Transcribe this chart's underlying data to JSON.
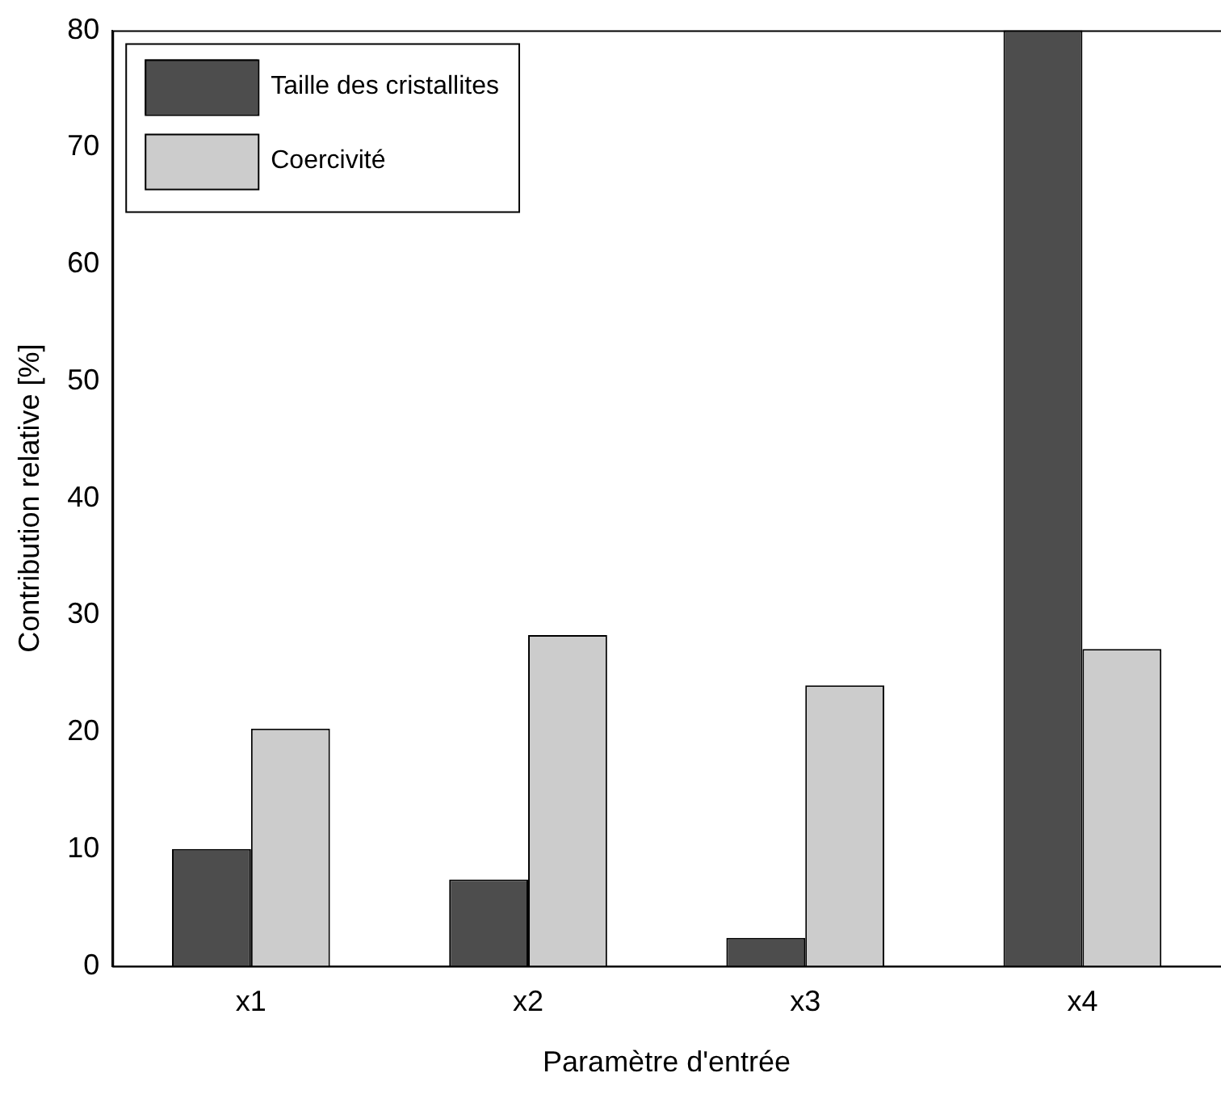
{
  "chart_data": {
    "type": "bar",
    "xlabel": "Paramètre d'entrée",
    "ylabel": "Contribution relative [%]",
    "categories": [
      "x1",
      "x2",
      "x3",
      "x4"
    ],
    "series": [
      {
        "name": "Taille des cristallites",
        "color": "#4d4d4d",
        "values": [
          10,
          7.4,
          2.4,
          80
        ]
      },
      {
        "name": "Coercivité",
        "color": "#cccccc",
        "values": [
          20.3,
          28.3,
          24,
          27.1
        ]
      }
    ],
    "ylim": [
      0,
      80
    ],
    "yticks": [
      0,
      10,
      20,
      30,
      40,
      50,
      60,
      70,
      80
    ],
    "grid": false,
    "legend": "top left"
  }
}
